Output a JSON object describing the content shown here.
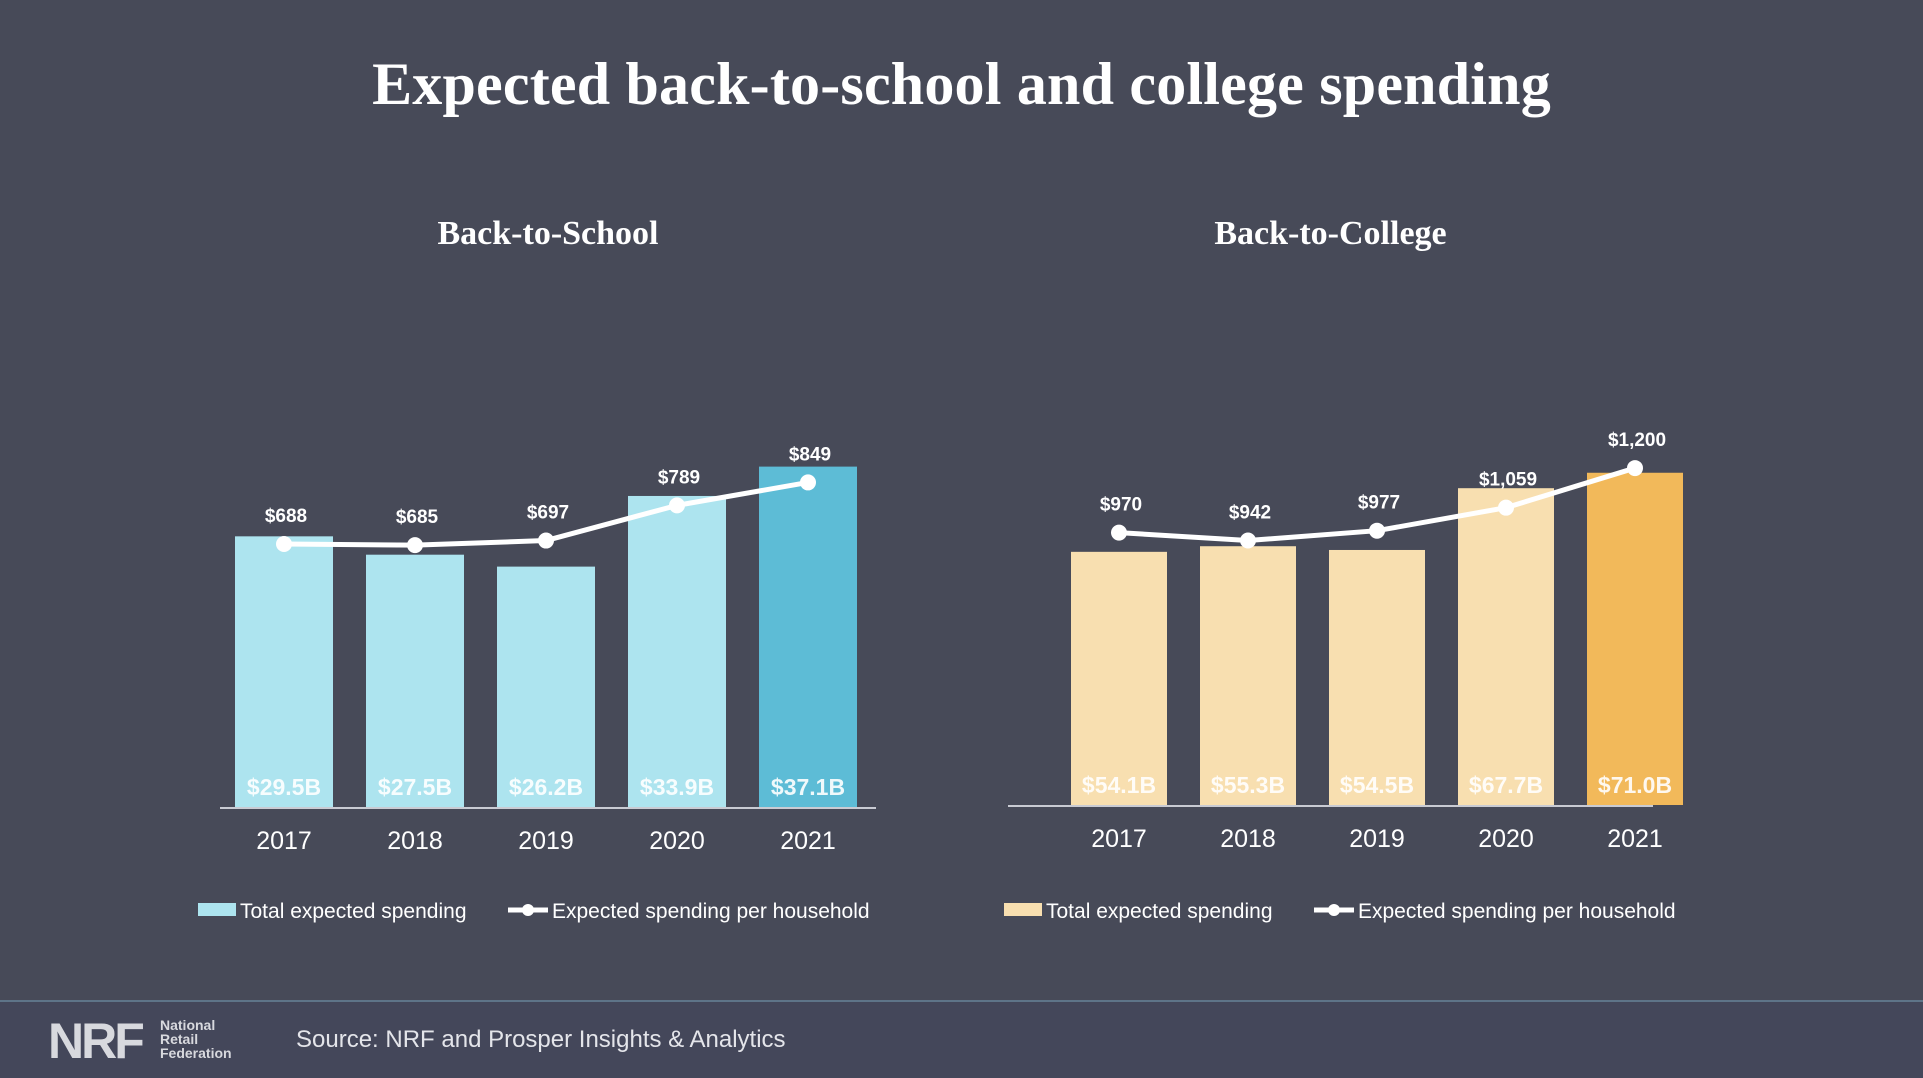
{
  "page": {
    "title": "Expected back-to-school and college spending",
    "background": "#474a58"
  },
  "footer": {
    "logo_mark": "NRF",
    "logo_words": [
      "National",
      "Retail",
      "Federation"
    ],
    "source": "Source: NRF and Prosper Insights & Analytics"
  },
  "chart_data": [
    {
      "id": "school",
      "type": "bar",
      "title": "Back-to-School",
      "categories": [
        "2017",
        "2018",
        "2019",
        "2020",
        "2021"
      ],
      "series": [
        {
          "name": "Total expected spending",
          "kind": "bar",
          "unit": "$B",
          "values": [
            29.5,
            27.5,
            26.2,
            33.9,
            37.1
          ],
          "labels": [
            "$29.5B",
            "$27.5B",
            "$26.2B",
            "$33.9B",
            "$37.1B"
          ],
          "colors": [
            "#ade4ef",
            "#ade4ef",
            "#ade4ef",
            "#ade4ef",
            "#5dbcd6"
          ]
        },
        {
          "name": "Expected spending per household",
          "kind": "line",
          "unit": "$",
          "values": [
            688,
            685,
            697,
            789,
            849
          ],
          "labels": [
            "$688",
            "$685",
            "$697",
            "$789",
            "$849"
          ],
          "color": "#ffffff"
        }
      ],
      "bar_range": [
        0,
        40
      ],
      "line_range": [
        0,
        960
      ],
      "legend_position": "bottom",
      "grid": false
    },
    {
      "id": "college",
      "type": "bar",
      "title": "Back-to-College",
      "categories": [
        "2017",
        "2018",
        "2019",
        "2020",
        "2021"
      ],
      "series": [
        {
          "name": "Total expected spending",
          "kind": "bar",
          "unit": "$B",
          "values": [
            54.1,
            55.3,
            54.5,
            67.7,
            71.0
          ],
          "labels": [
            "$54.1B",
            "$55.3B",
            "$54.5B",
            "$67.7B",
            "$71.0B"
          ],
          "colors": [
            "#f8dfb0",
            "#f8dfb0",
            "#f8dfb0",
            "#f8dfb0",
            "#f2b95a"
          ]
        },
        {
          "name": "Expected spending per household",
          "kind": "line",
          "unit": "$",
          "values": [
            970,
            942,
            977,
            1059,
            1200
          ],
          "labels": [
            "$970",
            "$942",
            "$977",
            "$1,059",
            "$1,200"
          ],
          "color": "#ffffff"
        }
      ],
      "bar_range": [
        0,
        78
      ],
      "line_range": [
        0,
        1300
      ],
      "legend_position": "bottom",
      "grid": false
    }
  ]
}
